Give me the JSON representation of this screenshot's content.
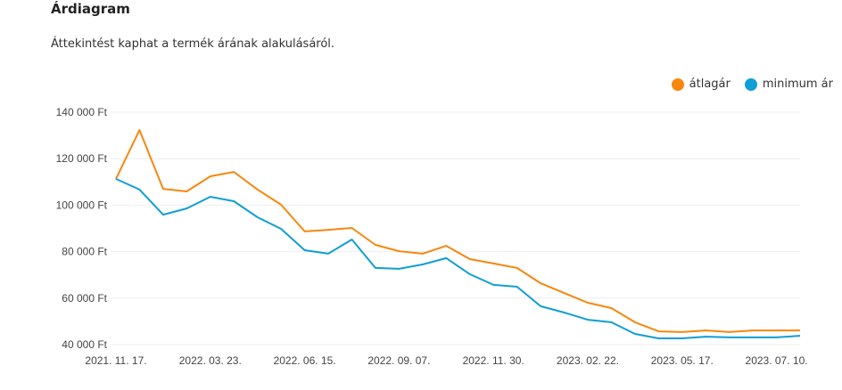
{
  "header": {
    "title": "Árdiagram",
    "subtitle": "Áttekintést kaphat a termék árának alakulásáról."
  },
  "chart_data": {
    "type": "line",
    "title": "Árdiagram",
    "xlabel": "",
    "ylabel": "",
    "ylim": [
      40000,
      140000
    ],
    "y_ticks": [
      40000,
      60000,
      80000,
      100000,
      120000,
      140000
    ],
    "y_tick_labels": [
      "40 000 Ft",
      "60 000 Ft",
      "80 000 Ft",
      "100 000 Ft",
      "120 000 Ft",
      "140 000 Ft"
    ],
    "x_tick_labels": [
      {
        "index": 0,
        "label": "2021. 11. 17."
      },
      {
        "index": 4,
        "label": "2022. 03. 23."
      },
      {
        "index": 8,
        "label": "2022. 06. 15."
      },
      {
        "index": 12,
        "label": "2022. 09. 07."
      },
      {
        "index": 16,
        "label": "2022. 11. 30."
      },
      {
        "index": 20,
        "label": "2023. 02. 22."
      },
      {
        "index": 24,
        "label": "2023. 05. 17."
      },
      {
        "index": 28,
        "label": "2023. 07. 10."
      }
    ],
    "point_count": 30,
    "grid": true,
    "legend_position": "top-right",
    "series": [
      {
        "name": "átlagár",
        "color": "#f7870f",
        "values": [
          111300,
          132300,
          107000,
          105900,
          112400,
          114300,
          106700,
          100200,
          88700,
          89400,
          90200,
          82900,
          80200,
          79100,
          82500,
          76800,
          74900,
          73000,
          66400,
          62200,
          58000,
          55700,
          49600,
          45700,
          45400,
          46100,
          45400,
          46100,
          46100,
          46100
        ]
      },
      {
        "name": "minimum ár",
        "color": "#0f9ed5",
        "values": [
          111300,
          106700,
          95900,
          98600,
          103600,
          101700,
          94800,
          89800,
          80600,
          79100,
          85200,
          73000,
          72600,
          74500,
          77200,
          70300,
          65700,
          64900,
          56500,
          53800,
          50700,
          49600,
          44600,
          42700,
          42700,
          43400,
          43100,
          43100,
          43100,
          43800
        ]
      }
    ]
  }
}
